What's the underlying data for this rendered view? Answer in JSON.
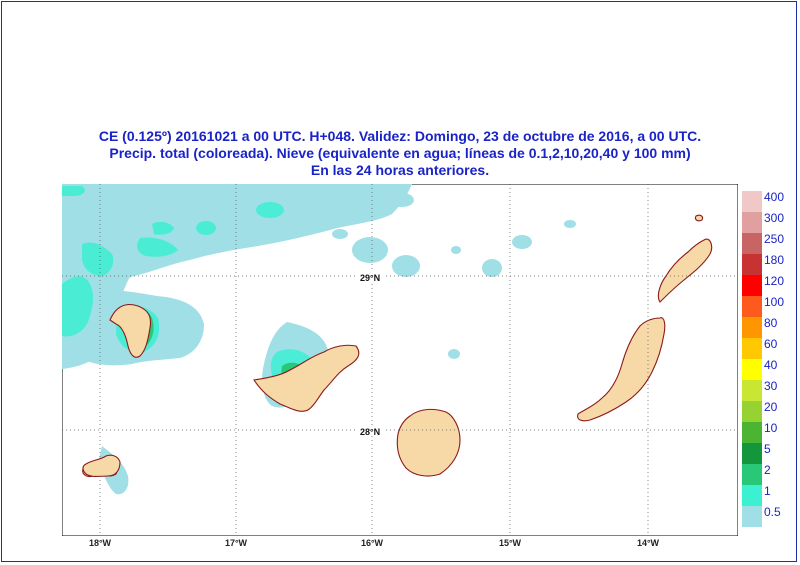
{
  "title_lines": [
    "CE (0.125º) 20161021 a 00 UTC.  H+048. Validez: Domingo, 23 de octubre de 2016,  a  00 UTC.",
    "Precip. total (coloreada). Nieve (equivalente en agua; líneas de 0.1,2,10,20,40 y 100 mm)",
    "En las 24 horas anteriores."
  ],
  "map": {
    "lat_labels": [
      "29°N",
      "28°N"
    ],
    "lon_labels": [
      "18°W",
      "17°W",
      "16°W",
      "15°W",
      "14°W"
    ],
    "land_color": "#f7d9a8",
    "coast_color": "#8b1a1a",
    "ocean_color": "#ffffff"
  },
  "legend": {
    "labels": [
      "400",
      "300",
      "250",
      "180",
      "120",
      "100",
      "80",
      "60",
      "40",
      "30",
      "20",
      "10",
      "5",
      "2",
      "1",
      "0.5"
    ],
    "colors": [
      "#f0c8c8",
      "#e0a0a0",
      "#c86464",
      "#c83232",
      "#ff0000",
      "#ff5a1e",
      "#ff9600",
      "#ffc800",
      "#ffff00",
      "#c8e632",
      "#96d232",
      "#4bb432",
      "#14963c",
      "#28c878",
      "#3cf0d2",
      "#a0dfe6"
    ]
  }
}
